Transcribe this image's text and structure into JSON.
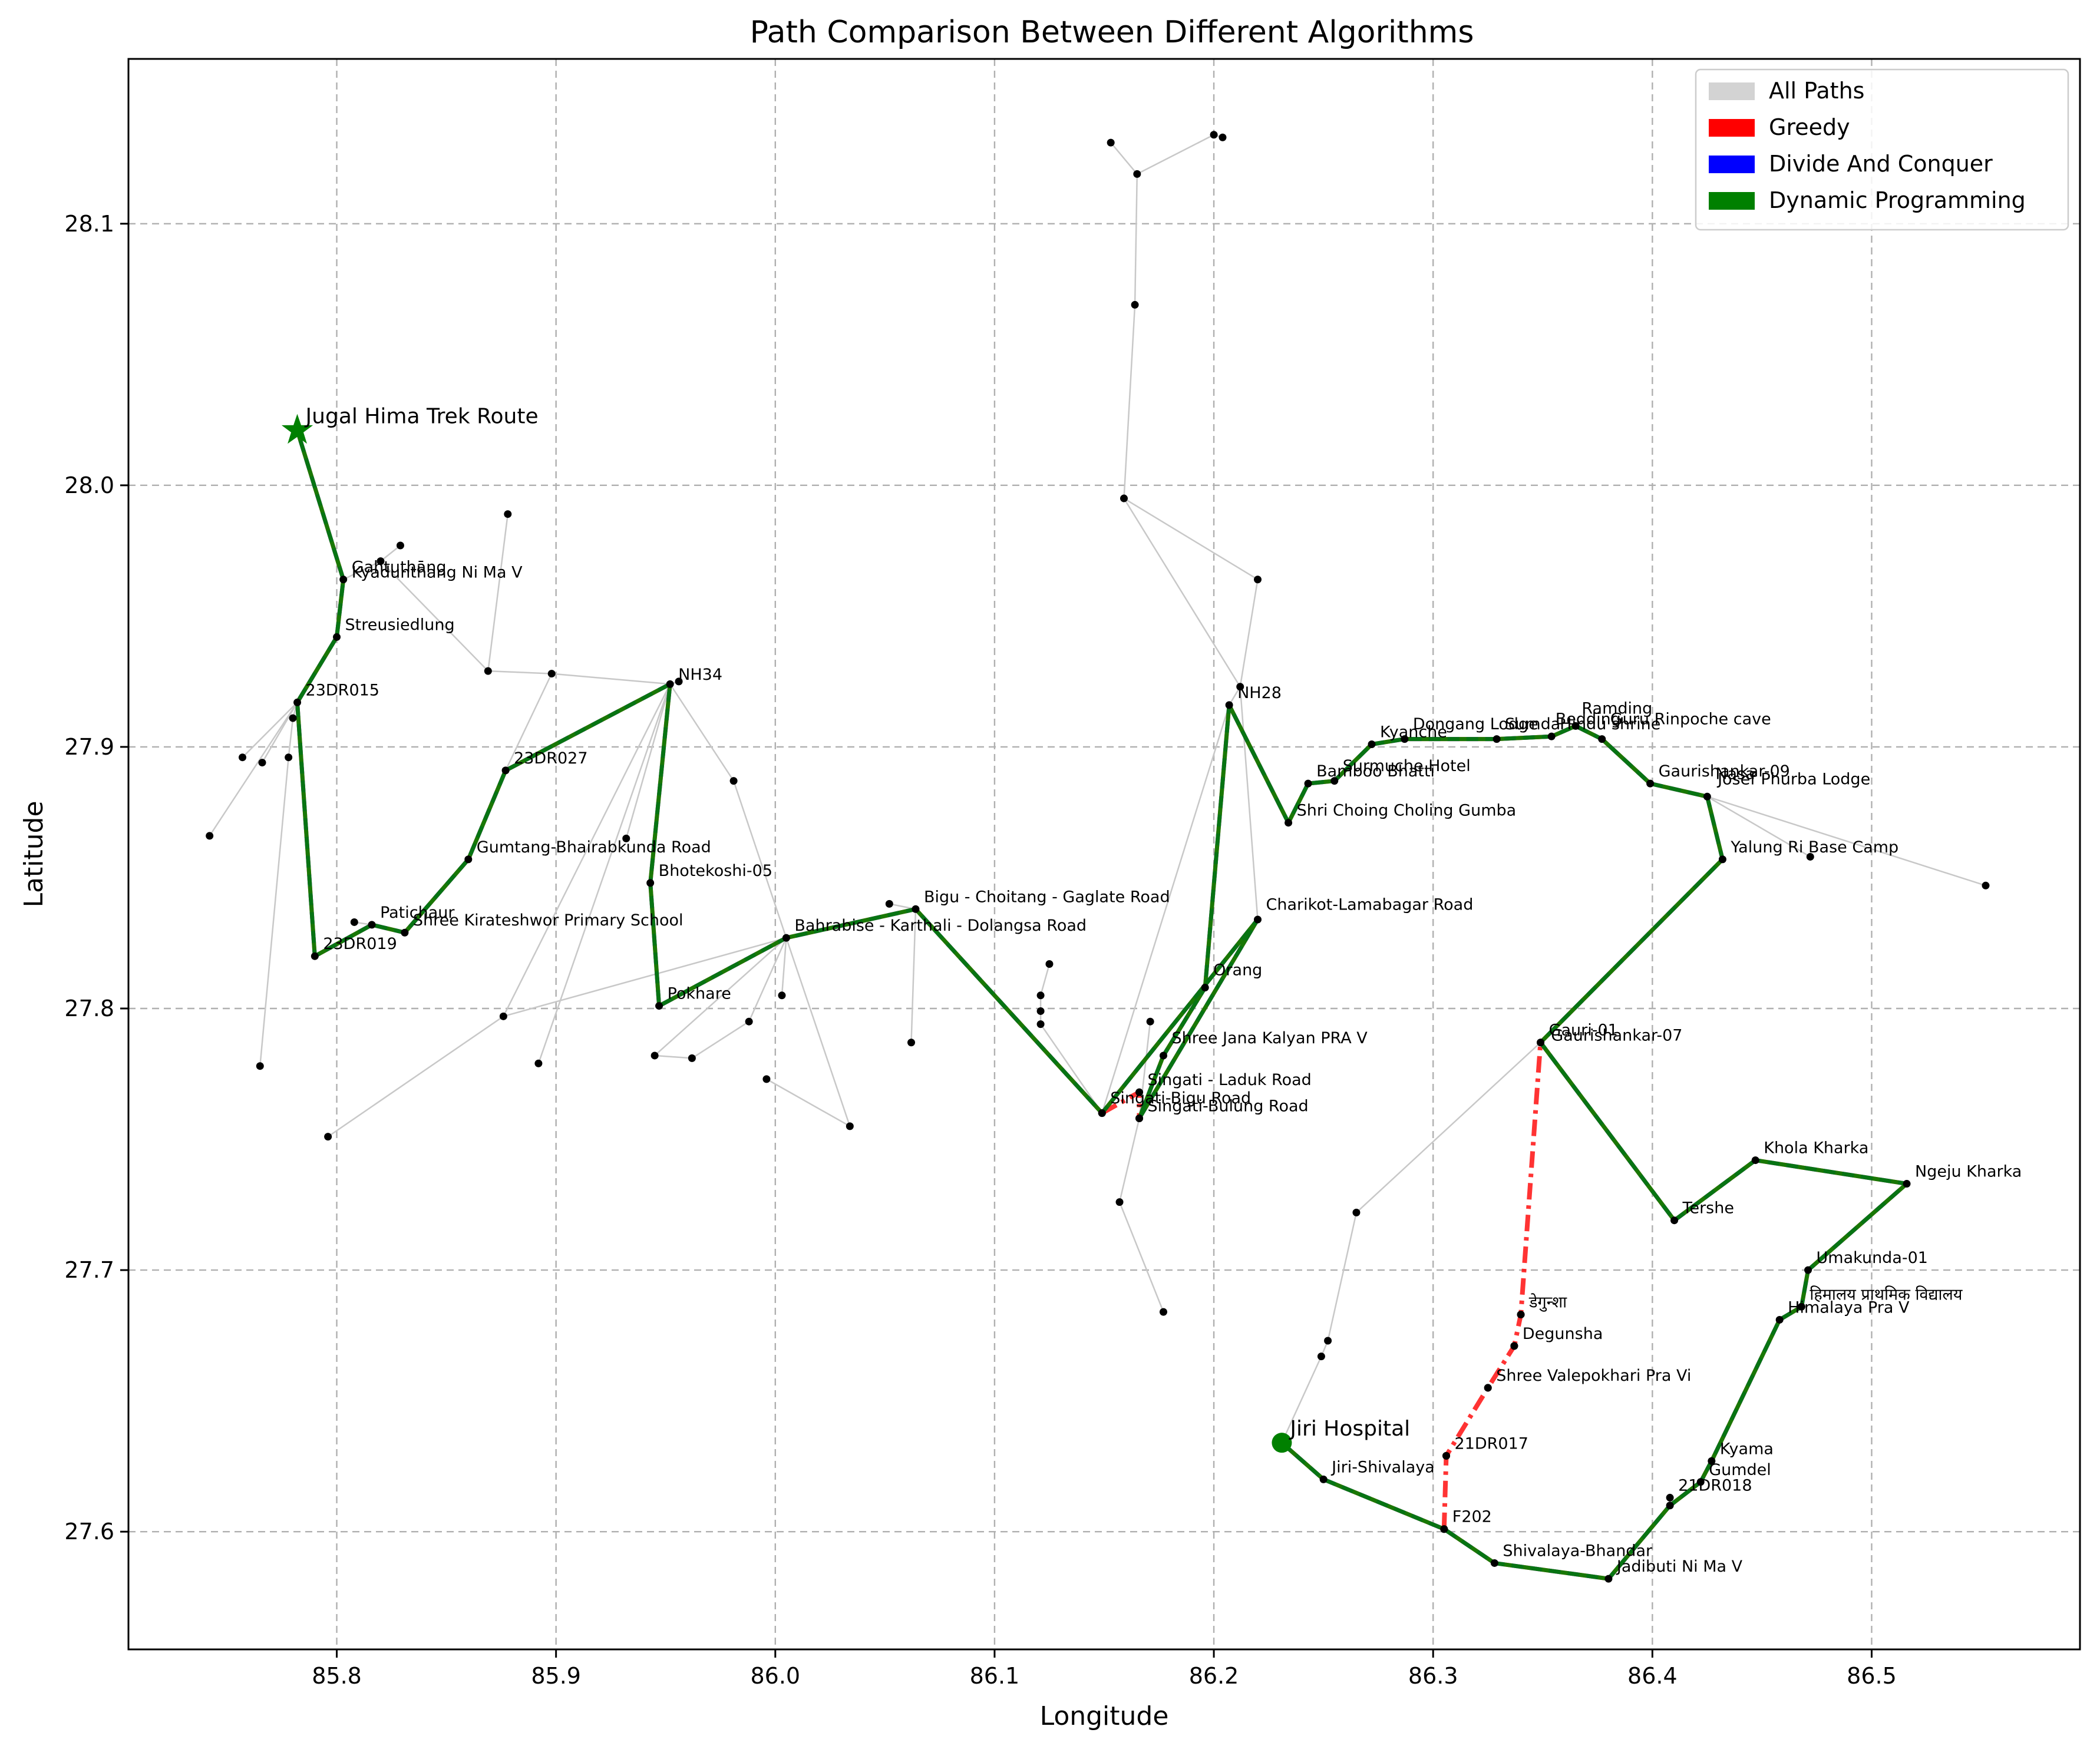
{
  "chart_data": {
    "type": "line",
    "title": "Path Comparison Between Different Algorithms",
    "xlabel": "Longitude",
    "ylabel": "Latitude",
    "xlim": [
      85.705,
      86.595
    ],
    "ylim": [
      27.555,
      28.163
    ],
    "xticks": [
      "85.8",
      "85.9",
      "86.0",
      "86.1",
      "86.2",
      "86.3",
      "86.4",
      "86.5"
    ],
    "xtick_values": [
      85.8,
      85.9,
      86.0,
      86.1,
      86.2,
      86.3,
      86.4,
      86.5
    ],
    "yticks": [
      "27.6",
      "27.7",
      "27.8",
      "27.9",
      "28.0",
      "28.1"
    ],
    "ytick_values": [
      27.6,
      27.7,
      27.8,
      27.9,
      28.0,
      28.1
    ],
    "grid": true,
    "legend_position": "top-right",
    "legend": [
      {
        "label": "All Paths",
        "color": "#d3d3d3"
      },
      {
        "label": "Greedy",
        "color": "#ff0000"
      },
      {
        "label": "Divide And Conquer",
        "color": "#0000ff"
      },
      {
        "label": "Dynamic Programming",
        "color": "#008000"
      }
    ],
    "start": {
      "name": "Jiri Hospital",
      "lon": 86.231,
      "lat": 27.634,
      "color": "#008000"
    },
    "end": {
      "name": "Jugal Hima Trek Route",
      "lon": 85.782,
      "lat": 28.021,
      "color": "#008000"
    },
    "labels": [
      {
        "text": "Jugal Hima Trek Route",
        "lon": 85.782,
        "lat": 28.021,
        "endpoint": true
      },
      {
        "text": "Jiri Hospital",
        "lon": 86.231,
        "lat": 27.634,
        "endpoint": true
      },
      {
        "text": "Gahtuthāng",
        "lon": 85.803,
        "lat": 27.964
      },
      {
        "text": "Kyadunthang Ni Ma V",
        "lon": 85.803,
        "lat": 27.962
      },
      {
        "text": "Streusiedlung",
        "lon": 85.8,
        "lat": 27.942
      },
      {
        "text": "23DR015",
        "lon": 85.782,
        "lat": 27.917
      },
      {
        "text": "23DR027",
        "lon": 85.877,
        "lat": 27.891
      },
      {
        "text": "Gumtang-Bhairabkunda Road",
        "lon": 85.86,
        "lat": 27.857
      },
      {
        "text": "Patichaur",
        "lon": 85.816,
        "lat": 27.832
      },
      {
        "text": "Shree Kirateshwor Primary School",
        "lon": 85.831,
        "lat": 27.829
      },
      {
        "text": "23DR019",
        "lon": 85.79,
        "lat": 27.82
      },
      {
        "text": "NH34",
        "lon": 85.952,
        "lat": 27.923
      },
      {
        "text": "Bhotekoshi-05",
        "lon": 85.943,
        "lat": 27.848
      },
      {
        "text": "Pokhare",
        "lon": 85.947,
        "lat": 27.801
      },
      {
        "text": "Bahrabise - Karthali - Dolangsa Road",
        "lon": 86.005,
        "lat": 27.827
      },
      {
        "text": "Bigu - Choitang - Gaglate Road",
        "lon": 86.064,
        "lat": 27.838
      },
      {
        "text": "Singati - Laduk Road",
        "lon": 86.166,
        "lat": 27.768
      },
      {
        "text": "Singati-Bigu Road",
        "lon": 86.149,
        "lat": 27.761
      },
      {
        "text": "Singati-Bulung Road",
        "lon": 86.166,
        "lat": 27.758
      },
      {
        "text": "Shree Jana Kalyan PRA V",
        "lon": 86.177,
        "lat": 27.784
      },
      {
        "text": "Orang",
        "lon": 86.196,
        "lat": 27.81
      },
      {
        "text": "Charikot-Lamabagar Road",
        "lon": 86.22,
        "lat": 27.835
      },
      {
        "text": "NH28",
        "lon": 86.207,
        "lat": 27.916
      },
      {
        "text": "Shri Choing Choling Gumba",
        "lon": 86.234,
        "lat": 27.871
      },
      {
        "text": "Bamboo Bhatti",
        "lon": 86.243,
        "lat": 27.886
      },
      {
        "text": "Surmuche Hotel",
        "lon": 86.255,
        "lat": 27.888
      },
      {
        "text": "Kyanche",
        "lon": 86.272,
        "lat": 27.901
      },
      {
        "text": "Dongang Lodge",
        "lon": 86.287,
        "lat": 27.904
      },
      {
        "text": "Sumda",
        "lon": 86.329,
        "lat": 27.904
      },
      {
        "text": "Hindu shrine",
        "lon": 86.354,
        "lat": 27.904
      },
      {
        "text": "Bedding",
        "lon": 86.352,
        "lat": 27.906
      },
      {
        "text": "Ramding",
        "lon": 86.364,
        "lat": 27.91
      },
      {
        "text": "Guru Rinpoche cave",
        "lon": 86.377,
        "lat": 27.906
      },
      {
        "text": "Gaurishankar-09",
        "lon": 86.399,
        "lat": 27.886
      },
      {
        "text": "Nasa",
        "lon": 86.425,
        "lat": 27.885
      },
      {
        "text": "Josef Phurba Lodge",
        "lon": 86.426,
        "lat": 27.883
      },
      {
        "text": "Yalung Ri Base Camp",
        "lon": 86.432,
        "lat": 27.857
      },
      {
        "text": "Gauri-01",
        "lon": 86.349,
        "lat": 27.787
      },
      {
        "text": "Gaurishankar-07",
        "lon": 86.35,
        "lat": 27.785
      },
      {
        "text": "Khola Kharka",
        "lon": 86.447,
        "lat": 27.742
      },
      {
        "text": "Ngeju Kharka",
        "lon": 86.516,
        "lat": 27.733
      },
      {
        "text": "Tershe",
        "lon": 86.41,
        "lat": 27.719
      },
      {
        "text": "Umakunda-01",
        "lon": 86.471,
        "lat": 27.7
      },
      {
        "text": "हिमालय प्राथमिक विद्यालय",
        "lon": 86.468,
        "lat": 27.686
      },
      {
        "text": "Himalaya Pra V",
        "lon": 86.458,
        "lat": 27.681
      },
      {
        "text": "डेगुन्शा",
        "lon": 86.34,
        "lat": 27.683
      },
      {
        "text": "Degunsha",
        "lon": 86.337,
        "lat": 27.671
      },
      {
        "text": "Shree Valepokhari Pra Vi",
        "lon": 86.325,
        "lat": 27.655
      },
      {
        "text": "21DR017",
        "lon": 86.306,
        "lat": 27.629
      },
      {
        "text": "Kyama",
        "lon": 86.427,
        "lat": 27.627
      },
      {
        "text": "Gumdel",
        "lon": 86.422,
        "lat": 27.619
      },
      {
        "text": "21DR018",
        "lon": 86.408,
        "lat": 27.613
      },
      {
        "text": "F202",
        "lon": 86.305,
        "lat": 27.601
      },
      {
        "text": "Jiri-Shivalaya",
        "lon": 86.25,
        "lat": 27.62
      },
      {
        "text": "Shivalaya-Bhandar",
        "lon": 86.328,
        "lat": 27.588
      },
      {
        "text": "Jadibuti Ni Ma V",
        "lon": 86.38,
        "lat": 27.582
      }
    ],
    "route_dp": [
      [
        86.231,
        27.634
      ],
      [
        86.25,
        27.62
      ],
      [
        86.305,
        27.601
      ],
      [
        86.328,
        27.588
      ],
      [
        86.38,
        27.582
      ],
      [
        86.408,
        27.61
      ],
      [
        86.422,
        27.619
      ],
      [
        86.427,
        27.627
      ],
      [
        86.458,
        27.681
      ],
      [
        86.468,
        27.686
      ],
      [
        86.471,
        27.7
      ],
      [
        86.516,
        27.733
      ],
      [
        86.447,
        27.742
      ],
      [
        86.41,
        27.719
      ],
      [
        86.349,
        27.787
      ],
      [
        86.432,
        27.857
      ],
      [
        86.425,
        27.881
      ],
      [
        86.399,
        27.886
      ],
      [
        86.377,
        27.903
      ],
      [
        86.365,
        27.908
      ],
      [
        86.354,
        27.904
      ],
      [
        86.329,
        27.903
      ],
      [
        86.287,
        27.903
      ],
      [
        86.272,
        27.901
      ],
      [
        86.255,
        27.887
      ],
      [
        86.243,
        27.886
      ],
      [
        86.234,
        27.871
      ],
      [
        86.207,
        27.916
      ],
      [
        86.196,
        27.808
      ],
      [
        86.177,
        27.782
      ],
      [
        86.166,
        27.758
      ],
      [
        86.22,
        27.834
      ],
      [
        86.149,
        27.76
      ],
      [
        86.064,
        27.838
      ],
      [
        86.005,
        27.827
      ],
      [
        85.947,
        27.801
      ],
      [
        85.943,
        27.848
      ],
      [
        85.952,
        27.924
      ],
      [
        85.877,
        27.891
      ],
      [
        85.86,
        27.857
      ],
      [
        85.831,
        27.829
      ],
      [
        85.816,
        27.832
      ],
      [
        85.79,
        27.82
      ],
      [
        85.782,
        27.917
      ],
      [
        85.8,
        27.942
      ],
      [
        85.803,
        27.964
      ],
      [
        85.782,
        28.021
      ]
    ],
    "route_greedy_extra": [
      [
        [
          86.305,
          27.601
        ],
        [
          86.306,
          27.629
        ],
        [
          86.325,
          27.655
        ],
        [
          86.337,
          27.671
        ],
        [
          86.34,
          27.683
        ],
        [
          86.349,
          27.787
        ]
      ],
      [
        [
          86.149,
          27.76
        ],
        [
          86.166,
          27.768
        ],
        [
          86.166,
          27.758
        ]
      ]
    ],
    "all_paths_edges": [
      [
        [
          85.742,
          27.866
        ],
        [
          85.782,
          27.917
        ]
      ],
      [
        [
          85.757,
          27.896
        ],
        [
          85.782,
          27.917
        ]
      ],
      [
        [
          85.766,
          27.894
        ],
        [
          85.782,
          27.917
        ]
      ],
      [
        [
          85.778,
          27.896
        ],
        [
          85.78,
          27.911
        ]
      ],
      [
        [
          85.78,
          27.911
        ],
        [
          85.782,
          27.917
        ]
      ],
      [
        [
          85.765,
          27.778
        ],
        [
          85.778,
          27.896
        ]
      ],
      [
        [
          85.796,
          27.751
        ],
        [
          85.876,
          27.797
        ]
      ],
      [
        [
          85.876,
          27.797
        ],
        [
          85.952,
          27.924
        ]
      ],
      [
        [
          85.876,
          27.797
        ],
        [
          86.005,
          27.827
        ]
      ],
      [
        [
          85.808,
          27.833
        ],
        [
          85.816,
          27.832
        ]
      ],
      [
        [
          85.803,
          27.964
        ],
        [
          85.82,
          27.971
        ]
      ],
      [
        [
          85.82,
          27.971
        ],
        [
          85.829,
          27.977
        ]
      ],
      [
        [
          85.82,
          27.971
        ],
        [
          85.869,
          27.929
        ]
      ],
      [
        [
          85.869,
          27.929
        ],
        [
          85.878,
          27.989
        ]
      ],
      [
        [
          85.869,
          27.929
        ],
        [
          85.898,
          27.928
        ]
      ],
      [
        [
          85.898,
          27.928
        ],
        [
          85.952,
          27.924
        ]
      ],
      [
        [
          85.898,
          27.928
        ],
        [
          85.877,
          27.891
        ]
      ],
      [
        [
          85.952,
          27.924
        ],
        [
          85.956,
          27.925
        ]
      ],
      [
        [
          85.952,
          27.924
        ],
        [
          85.932,
          27.865
        ]
      ],
      [
        [
          85.952,
          27.924
        ],
        [
          85.892,
          27.779
        ]
      ],
      [
        [
          85.952,
          27.924
        ],
        [
          85.981,
          27.887
        ]
      ],
      [
        [
          85.981,
          27.887
        ],
        [
          86.005,
          27.827
        ]
      ],
      [
        [
          85.945,
          27.782
        ],
        [
          85.962,
          27.781
        ]
      ],
      [
        [
          85.962,
          27.781
        ],
        [
          85.988,
          27.795
        ]
      ],
      [
        [
          85.988,
          27.795
        ],
        [
          86.005,
          27.827
        ]
      ],
      [
        [
          85.945,
          27.782
        ],
        [
          86.005,
          27.827
        ]
      ],
      [
        [
          86.005,
          27.827
        ],
        [
          86.003,
          27.805
        ]
      ],
      [
        [
          86.005,
          27.827
        ],
        [
          86.034,
          27.755
        ]
      ],
      [
        [
          85.996,
          27.773
        ],
        [
          86.034,
          27.755
        ]
      ],
      [
        [
          86.052,
          27.84
        ],
        [
          86.064,
          27.838
        ]
      ],
      [
        [
          86.064,
          27.838
        ],
        [
          86.062,
          27.787
        ]
      ],
      [
        [
          86.121,
          27.805
        ],
        [
          86.121,
          27.799
        ]
      ],
      [
        [
          86.121,
          27.799
        ],
        [
          86.121,
          27.794
        ]
      ],
      [
        [
          86.121,
          27.805
        ],
        [
          86.125,
          27.817
        ]
      ],
      [
        [
          86.121,
          27.794
        ],
        [
          86.149,
          27.76
        ]
      ],
      [
        [
          86.149,
          27.76
        ],
        [
          86.207,
          27.916
        ]
      ],
      [
        [
          86.207,
          27.916
        ],
        [
          86.212,
          27.923
        ]
      ],
      [
        [
          86.212,
          27.923
        ],
        [
          86.22,
          27.964
        ]
      ],
      [
        [
          86.22,
          27.964
        ],
        [
          86.159,
          27.995
        ]
      ],
      [
        [
          86.159,
          27.995
        ],
        [
          86.164,
          28.069
        ]
      ],
      [
        [
          86.164,
          28.069
        ],
        [
          86.165,
          28.119
        ]
      ],
      [
        [
          86.165,
          28.119
        ],
        [
          86.153,
          28.131
        ]
      ],
      [
        [
          86.165,
          28.119
        ],
        [
          86.2,
          28.134
        ]
      ],
      [
        [
          86.2,
          28.134
        ],
        [
          86.204,
          28.133
        ]
      ],
      [
        [
          86.159,
          27.995
        ],
        [
          86.212,
          27.923
        ]
      ],
      [
        [
          86.212,
          27.923
        ],
        [
          86.22,
          27.834
        ]
      ],
      [
        [
          86.171,
          27.795
        ],
        [
          86.166,
          27.758
        ]
      ],
      [
        [
          86.157,
          27.726
        ],
        [
          86.166,
          27.758
        ]
      ],
      [
        [
          86.157,
          27.726
        ],
        [
          86.177,
          27.684
        ]
      ],
      [
        [
          86.349,
          27.787
        ],
        [
          86.265,
          27.722
        ]
      ],
      [
        [
          86.265,
          27.722
        ],
        [
          86.252,
          27.673
        ]
      ],
      [
        [
          86.252,
          27.673
        ],
        [
          86.249,
          27.667
        ]
      ],
      [
        [
          86.249,
          27.667
        ],
        [
          86.231,
          27.634
        ]
      ],
      [
        [
          86.432,
          27.857
        ],
        [
          86.425,
          27.881
        ]
      ],
      [
        [
          86.425,
          27.881
        ],
        [
          86.472,
          27.858
        ]
      ],
      [
        [
          86.425,
          27.881
        ],
        [
          86.552,
          27.847
        ]
      ],
      [
        [
          86.408,
          27.613
        ],
        [
          86.408,
          27.61
        ]
      ]
    ],
    "nodes": [
      [
        85.742,
        27.866
      ],
      [
        85.757,
        27.896
      ],
      [
        85.766,
        27.894
      ],
      [
        85.778,
        27.896
      ],
      [
        85.78,
        27.911
      ],
      [
        85.765,
        27.778
      ],
      [
        85.796,
        27.751
      ],
      [
        85.808,
        27.833
      ],
      [
        85.82,
        27.971
      ],
      [
        85.829,
        27.977
      ],
      [
        85.878,
        27.989
      ],
      [
        85.869,
        27.929
      ],
      [
        85.898,
        27.928
      ],
      [
        85.956,
        27.925
      ],
      [
        85.932,
        27.865
      ],
      [
        85.892,
        27.779
      ],
      [
        85.876,
        27.797
      ],
      [
        85.981,
        27.887
      ],
      [
        85.945,
        27.782
      ],
      [
        85.962,
        27.781
      ],
      [
        85.988,
        27.795
      ],
      [
        85.996,
        27.773
      ],
      [
        86.003,
        27.805
      ],
      [
        86.034,
        27.755
      ],
      [
        86.052,
        27.84
      ],
      [
        86.062,
        27.787
      ],
      [
        86.121,
        27.805
      ],
      [
        86.121,
        27.799
      ],
      [
        86.121,
        27.794
      ],
      [
        86.125,
        27.817
      ],
      [
        86.171,
        27.795
      ],
      [
        86.157,
        27.726
      ],
      [
        86.177,
        27.684
      ],
      [
        86.212,
        27.923
      ],
      [
        86.22,
        27.964
      ],
      [
        86.159,
        27.995
      ],
      [
        86.164,
        28.069
      ],
      [
        86.165,
        28.119
      ],
      [
        86.153,
        28.131
      ],
      [
        86.2,
        28.134
      ],
      [
        86.204,
        28.133
      ],
      [
        86.265,
        27.722
      ],
      [
        86.252,
        27.673
      ],
      [
        86.249,
        27.667
      ],
      [
        86.472,
        27.858
      ],
      [
        86.552,
        27.847
      ],
      [
        86.408,
        27.613
      ],
      [
        86.337,
        27.671
      ],
      [
        86.34,
        27.683
      ],
      [
        86.325,
        27.655
      ],
      [
        86.306,
        27.629
      ]
    ]
  }
}
